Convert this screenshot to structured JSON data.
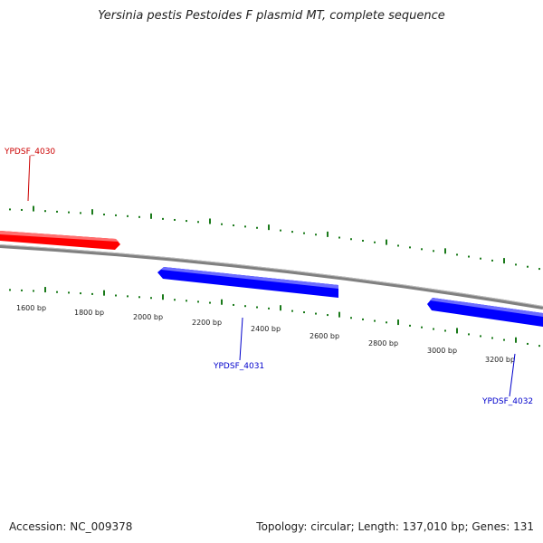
{
  "title": "Yersinia pestis Pestoides F plasmid MT, complete sequence",
  "footer": {
    "accession": "Accession: NC_009378",
    "summary": "Topology: circular; Length: 137,010 bp; Genes: 131"
  },
  "colors": {
    "forward_gene": "#ff0000",
    "reverse_gene": "#0000ff",
    "backbone": "#808080",
    "ticks": "#1a7a1a",
    "label_text": "#222222"
  },
  "ruler": {
    "unit": "bp",
    "labels": [
      "1600 bp",
      "1800 bp",
      "2000 bp",
      "2200 bp",
      "2400 bp",
      "2600 bp",
      "2800 bp",
      "3000 bp",
      "3200 bp"
    ]
  },
  "genes": [
    {
      "name": "YPDSF_4030",
      "strand": "forward",
      "color": "#cc0000"
    },
    {
      "name": "YPDSF_4031",
      "strand": "reverse",
      "color": "#0000cc"
    },
    {
      "name": "YPDSF_4032",
      "strand": "reverse",
      "color": "#0000cc"
    }
  ]
}
